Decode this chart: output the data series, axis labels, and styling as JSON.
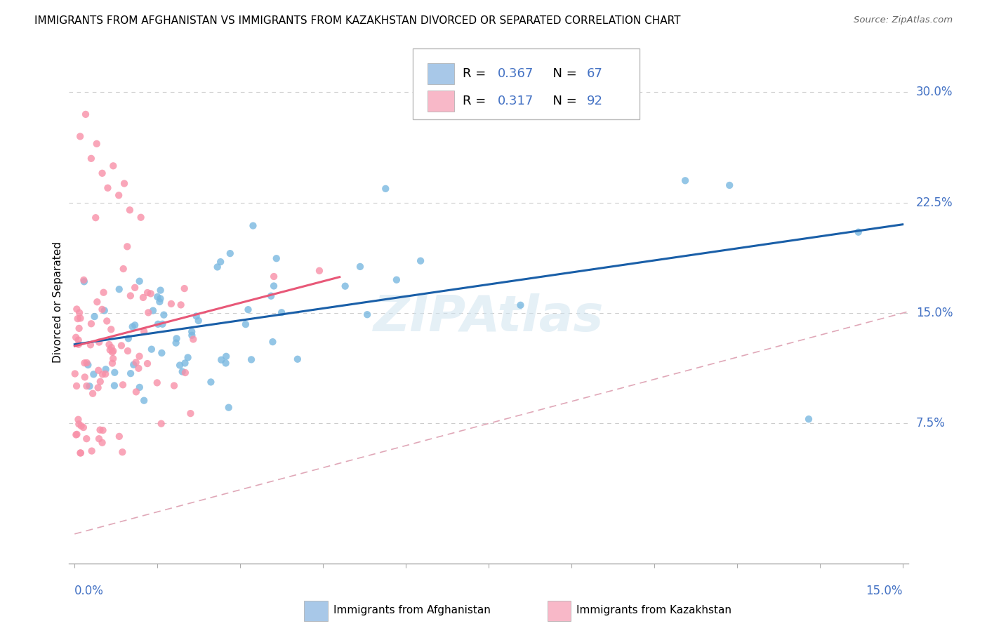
{
  "title": "IMMIGRANTS FROM AFGHANISTAN VS IMMIGRANTS FROM KAZAKHSTAN DIVORCED OR SEPARATED CORRELATION CHART",
  "source": "Source: ZipAtlas.com",
  "ylabel": "Divorced or Separated",
  "yticks": [
    "7.5%",
    "15.0%",
    "22.5%",
    "30.0%"
  ],
  "ytick_values": [
    0.075,
    0.15,
    0.225,
    0.3
  ],
  "xlim": [
    0.0,
    0.15
  ],
  "ylim": [
    -0.02,
    0.335
  ],
  "watermark": "ZIPAtlas",
  "afg_legend_color": "#a8c8e8",
  "kaz_legend_color": "#f8b8c8",
  "afghanistan_dot_color": "#7ab8e0",
  "kazakhstan_dot_color": "#f890a8",
  "trend_afghanistan_color": "#1a5fa8",
  "trend_kazakhstan_color": "#e85878",
  "diagonal_color": "#e0a8b8",
  "grid_color": "#cccccc",
  "r_n_color": "#4472c4",
  "seed": 123
}
